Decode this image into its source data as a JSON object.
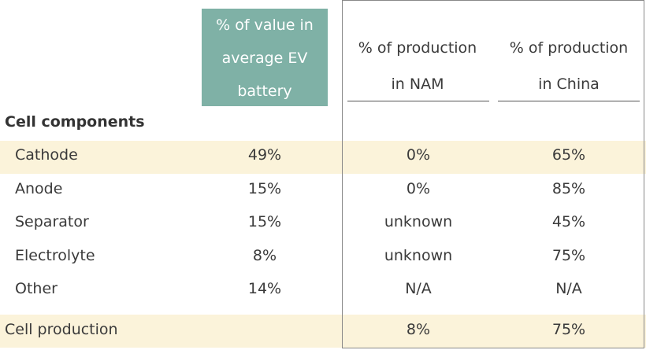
{
  "header": {
    "col1_lines": [
      "% of value in",
      "average EV",
      "battery"
    ],
    "col2_lines": [
      "% of production",
      "in NAM"
    ],
    "col3_lines": [
      "% of production",
      "in China"
    ]
  },
  "section_title": "Cell components",
  "rows": [
    {
      "label": "Cathode",
      "value": "49%",
      "nam": "0%",
      "china": "65%"
    },
    {
      "label": "Anode",
      "value": "15%",
      "nam": "0%",
      "china": "85%"
    },
    {
      "label": "Separator",
      "value": "15%",
      "nam": "unknown",
      "china": "45%"
    },
    {
      "label": "Electrolyte",
      "value": "8%",
      "nam": "unknown",
      "china": "75%"
    },
    {
      "label": "Other",
      "value": "14%",
      "nam": "N/A",
      "china": "N/A"
    }
  ],
  "footer_row": {
    "label": "Cell production",
    "value": "",
    "nam": "8%",
    "china": "75%"
  },
  "colors": {
    "accent": "#7fb1a6",
    "highlight": "#fbf3da"
  }
}
